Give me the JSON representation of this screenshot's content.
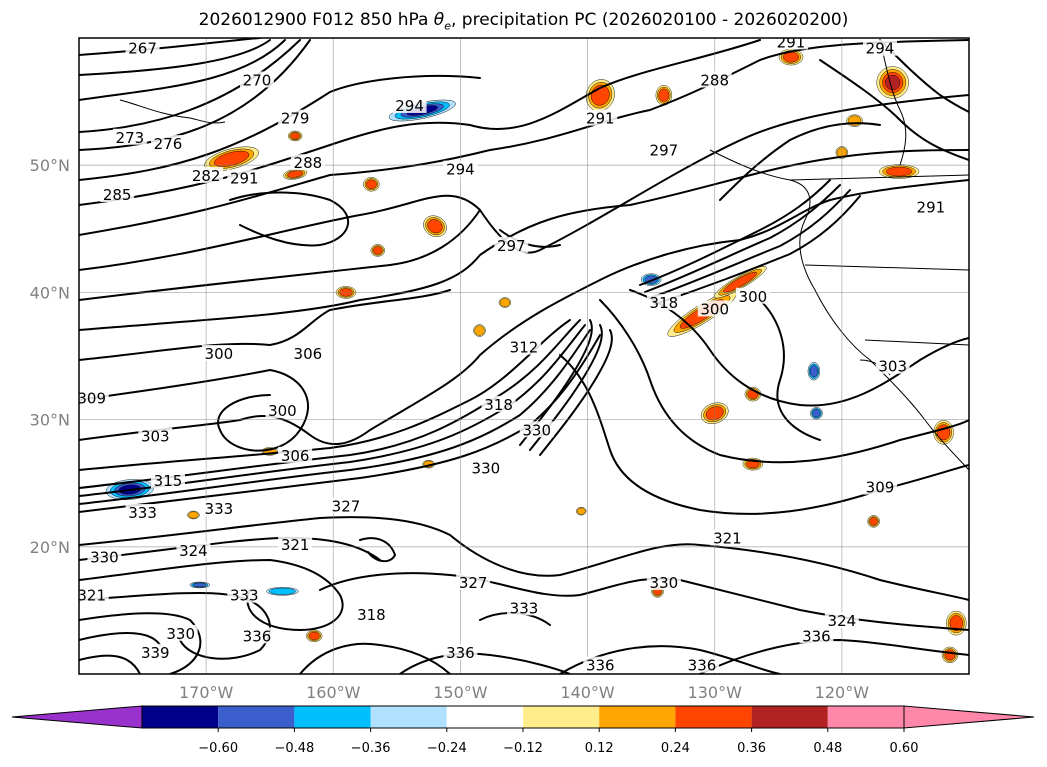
{
  "title": {
    "prefix": "2026012900 F012 850 hPa ",
    "symbol": "θ",
    "subscript": "e",
    "suffix": ", precipitation PC (2026020100 - 2026020200)"
  },
  "axes": {
    "lat_labels": [
      "50°N",
      "40°N",
      "30°N",
      "20°N"
    ],
    "lon_labels": [
      "170°W",
      "160°W",
      "150°W",
      "140°W",
      "130°W",
      "120°W"
    ],
    "lat_values": [
      50,
      40,
      30,
      20
    ],
    "lon_values": [
      -170,
      -160,
      -150,
      -140,
      -130,
      -120
    ],
    "lon_range": [
      -180,
      -110
    ],
    "lat_range": [
      10,
      60
    ],
    "grid": true
  },
  "contour_labels": [
    {
      "text": "267",
      "lon": -175,
      "lat": 59
    },
    {
      "text": "270",
      "lon": -166,
      "lat": 56.5
    },
    {
      "text": "273",
      "lon": -176,
      "lat": 52
    },
    {
      "text": "276",
      "lon": -173,
      "lat": 51.5
    },
    {
      "text": "279",
      "lon": -163,
      "lat": 53.5
    },
    {
      "text": "282",
      "lon": -170,
      "lat": 49
    },
    {
      "text": "285",
      "lon": -177,
      "lat": 47.5
    },
    {
      "text": "288",
      "lon": -162,
      "lat": 50
    },
    {
      "text": "291",
      "lon": -167,
      "lat": 48.8
    },
    {
      "text": "294",
      "lon": -154,
      "lat": 54.5
    },
    {
      "text": "294",
      "lon": -150,
      "lat": 49.5
    },
    {
      "text": "288",
      "lon": -130,
      "lat": 56.5
    },
    {
      "text": "291",
      "lon": -124,
      "lat": 59.5
    },
    {
      "text": "294",
      "lon": -117,
      "lat": 59
    },
    {
      "text": "291",
      "lon": -139,
      "lat": 53.5
    },
    {
      "text": "297",
      "lon": -134,
      "lat": 51
    },
    {
      "text": "297",
      "lon": -146,
      "lat": 43.5
    },
    {
      "text": "291",
      "lon": -113,
      "lat": 46.5
    },
    {
      "text": "300",
      "lon": -169,
      "lat": 35
    },
    {
      "text": "306",
      "lon": -162,
      "lat": 35
    },
    {
      "text": "300",
      "lon": -164,
      "lat": 30.5
    },
    {
      "text": "303",
      "lon": -174,
      "lat": 28.5
    },
    {
      "text": "309",
      "lon": -179,
      "lat": 31.5
    },
    {
      "text": "312",
      "lon": -145,
      "lat": 35.5
    },
    {
      "text": "318",
      "lon": -147,
      "lat": 31
    },
    {
      "text": "330",
      "lon": -144,
      "lat": 29
    },
    {
      "text": "330",
      "lon": -148,
      "lat": 26
    },
    {
      "text": "306",
      "lon": -163,
      "lat": 27
    },
    {
      "text": "315",
      "lon": -173,
      "lat": 25
    },
    {
      "text": "333",
      "lon": -175,
      "lat": 22.5
    },
    {
      "text": "333",
      "lon": -169,
      "lat": 22.8
    },
    {
      "text": "327",
      "lon": -159,
      "lat": 23
    },
    {
      "text": "318",
      "lon": -134,
      "lat": 39
    },
    {
      "text": "300",
      "lon": -130,
      "lat": 38.5
    },
    {
      "text": "300",
      "lon": -127,
      "lat": 39.5
    },
    {
      "text": "303",
      "lon": -116,
      "lat": 34
    },
    {
      "text": "309",
      "lon": -117,
      "lat": 24.5
    },
    {
      "text": "321",
      "lon": -129,
      "lat": 20.5
    },
    {
      "text": "330",
      "lon": -178,
      "lat": 19
    },
    {
      "text": "324",
      "lon": -171,
      "lat": 19.5
    },
    {
      "text": "321",
      "lon": -163,
      "lat": 20
    },
    {
      "text": "321",
      "lon": -179,
      "lat": 16
    },
    {
      "text": "333",
      "lon": -167,
      "lat": 16
    },
    {
      "text": "327",
      "lon": -149,
      "lat": 17
    },
    {
      "text": "330",
      "lon": -134,
      "lat": 17
    },
    {
      "text": "333",
      "lon": -145,
      "lat": 15
    },
    {
      "text": "318",
      "lon": -157,
      "lat": 14.5
    },
    {
      "text": "330",
      "lon": -172,
      "lat": 13
    },
    {
      "text": "336",
      "lon": -166,
      "lat": 12.8
    },
    {
      "text": "339",
      "lon": -174,
      "lat": 11.5
    },
    {
      "text": "336",
      "lon": -150,
      "lat": 11.5
    },
    {
      "text": "336",
      "lon": -139,
      "lat": 10.5
    },
    {
      "text": "336",
      "lon": -131,
      "lat": 10.5
    },
    {
      "text": "336",
      "lon": -122,
      "lat": 12.8
    },
    {
      "text": "324",
      "lon": -120,
      "lat": 14
    }
  ],
  "colorbar": {
    "tick_labels": [
      "−0.60",
      "−0.48",
      "−0.36",
      "−0.24",
      "−0.12",
      "0.12",
      "0.24",
      "0.36",
      "0.48",
      "0.60"
    ],
    "colors": [
      "#9932cc",
      "#00008b",
      "#3a5fcd",
      "#00bfff",
      "#b0e2ff",
      "#ffffff",
      "#ffed8b",
      "#ffa500",
      "#ff4500",
      "#b22222",
      "#ff88aa",
      "#ff88aa"
    ],
    "under_color": "#9932cc",
    "over_color": "#ff88aa"
  },
  "precip_blobs": [
    {
      "lon": -168,
      "lat": 50.5,
      "rx": 28,
      "ry": 10,
      "rot": -15,
      "v": 0.4
    },
    {
      "lon": -163,
      "lat": 49.3,
      "rx": 12,
      "ry": 5,
      "rot": -10,
      "v": 0.4
    },
    {
      "lon": -153,
      "lat": 54.3,
      "rx": 34,
      "ry": 8,
      "rot": -12,
      "v": -0.5
    },
    {
      "lon": -139,
      "lat": 55.5,
      "rx": 14,
      "ry": 16,
      "rot": 20,
      "v": 0.4
    },
    {
      "lon": -134,
      "lat": 55.5,
      "rx": 8,
      "ry": 10,
      "rot": 0,
      "v": 0.45
    },
    {
      "lon": -124,
      "lat": 58.5,
      "rx": 12,
      "ry": 8,
      "rot": 0,
      "v": 0.4
    },
    {
      "lon": -116,
      "lat": 56.5,
      "rx": 16,
      "ry": 16,
      "rot": 0,
      "v": 0.55
    },
    {
      "lon": -119,
      "lat": 53.5,
      "rx": 8,
      "ry": 6,
      "rot": 0,
      "v": 0.35
    },
    {
      "lon": -115.5,
      "lat": 49.5,
      "rx": 20,
      "ry": 7,
      "rot": 0,
      "v": 0.4
    },
    {
      "lon": -120,
      "lat": 51,
      "rx": 6,
      "ry": 6,
      "rot": 0,
      "v": 0.35
    },
    {
      "lon": -152,
      "lat": 45.2,
      "rx": 12,
      "ry": 10,
      "rot": 30,
      "v": 0.4
    },
    {
      "lon": -157,
      "lat": 48.5,
      "rx": 8,
      "ry": 7,
      "rot": 0,
      "v": 0.38
    },
    {
      "lon": -163,
      "lat": 52.3,
      "rx": 7,
      "ry": 5,
      "rot": 0,
      "v": 0.38
    },
    {
      "lon": -131,
      "lat": 38.3,
      "rx": 40,
      "ry": 9,
      "rot": -32,
      "v": 0.45
    },
    {
      "lon": -128,
      "lat": 40.8,
      "rx": 30,
      "ry": 6,
      "rot": -30,
      "v": 0.45
    },
    {
      "lon": -135,
      "lat": 41,
      "rx": 10,
      "ry": 6,
      "rot": 0,
      "v": -0.4
    },
    {
      "lon": -130,
      "lat": 30.5,
      "rx": 14,
      "ry": 10,
      "rot": -20,
      "v": 0.45
    },
    {
      "lon": -127,
      "lat": 32,
      "rx": 8,
      "ry": 7,
      "rot": 0,
      "v": 0.4
    },
    {
      "lon": -127,
      "lat": 26.5,
      "rx": 10,
      "ry": 6,
      "rot": 0,
      "v": 0.38
    },
    {
      "lon": -176,
      "lat": 24.5,
      "rx": 24,
      "ry": 10,
      "rot": -5,
      "v": -0.55
    },
    {
      "lon": -159,
      "lat": 40,
      "rx": 10,
      "ry": 6,
      "rot": 0,
      "v": 0.38
    },
    {
      "lon": -156.5,
      "lat": 43.3,
      "rx": 7,
      "ry": 6,
      "rot": 0,
      "v": 0.38
    },
    {
      "lon": -148.5,
      "lat": 37,
      "rx": 6,
      "ry": 6,
      "rot": 0,
      "v": 0.35
    },
    {
      "lon": -146.5,
      "lat": 39.2,
      "rx": 6,
      "ry": 5,
      "rot": 0,
      "v": 0.35
    },
    {
      "lon": -112,
      "lat": 29,
      "rx": 10,
      "ry": 12,
      "rot": 0,
      "v": 0.4
    },
    {
      "lon": -111,
      "lat": 14,
      "rx": 10,
      "ry": 12,
      "rot": 0,
      "v": 0.45
    },
    {
      "lon": -111.5,
      "lat": 11.5,
      "rx": 8,
      "ry": 8,
      "rot": 0,
      "v": 0.4
    },
    {
      "lon": -122,
      "lat": 30.5,
      "rx": 6,
      "ry": 6,
      "rot": 0,
      "v": -0.4
    },
    {
      "lon": -122.2,
      "lat": 33.8,
      "rx": 6,
      "ry": 9,
      "rot": 0,
      "v": -0.45
    },
    {
      "lon": -164,
      "lat": 16.5,
      "rx": 16,
      "ry": 4,
      "rot": 0,
      "v": -0.3
    },
    {
      "lon": -170.5,
      "lat": 17,
      "rx": 10,
      "ry": 3,
      "rot": 0,
      "v": -0.4
    },
    {
      "lon": -161.5,
      "lat": 13,
      "rx": 8,
      "ry": 6,
      "rot": 0,
      "v": 0.4
    },
    {
      "lon": -140.5,
      "lat": 22.8,
      "rx": 5,
      "ry": 4,
      "rot": 0,
      "v": 0.35
    },
    {
      "lon": -134.5,
      "lat": 16.5,
      "rx": 6,
      "ry": 6,
      "rot": 0,
      "v": 0.4
    },
    {
      "lon": -117.5,
      "lat": 22,
      "rx": 6,
      "ry": 6,
      "rot": 0,
      "v": 0.4
    },
    {
      "lon": -152.5,
      "lat": 26.5,
      "rx": 6,
      "ry": 4,
      "rot": 0,
      "v": 0.3
    },
    {
      "lon": -165,
      "lat": 27.5,
      "rx": 8,
      "ry": 4,
      "rot": 0,
      "v": 0.35
    },
    {
      "lon": -171,
      "lat": 22.5,
      "rx": 6,
      "ry": 4,
      "rot": 0,
      "v": 0.3
    }
  ]
}
